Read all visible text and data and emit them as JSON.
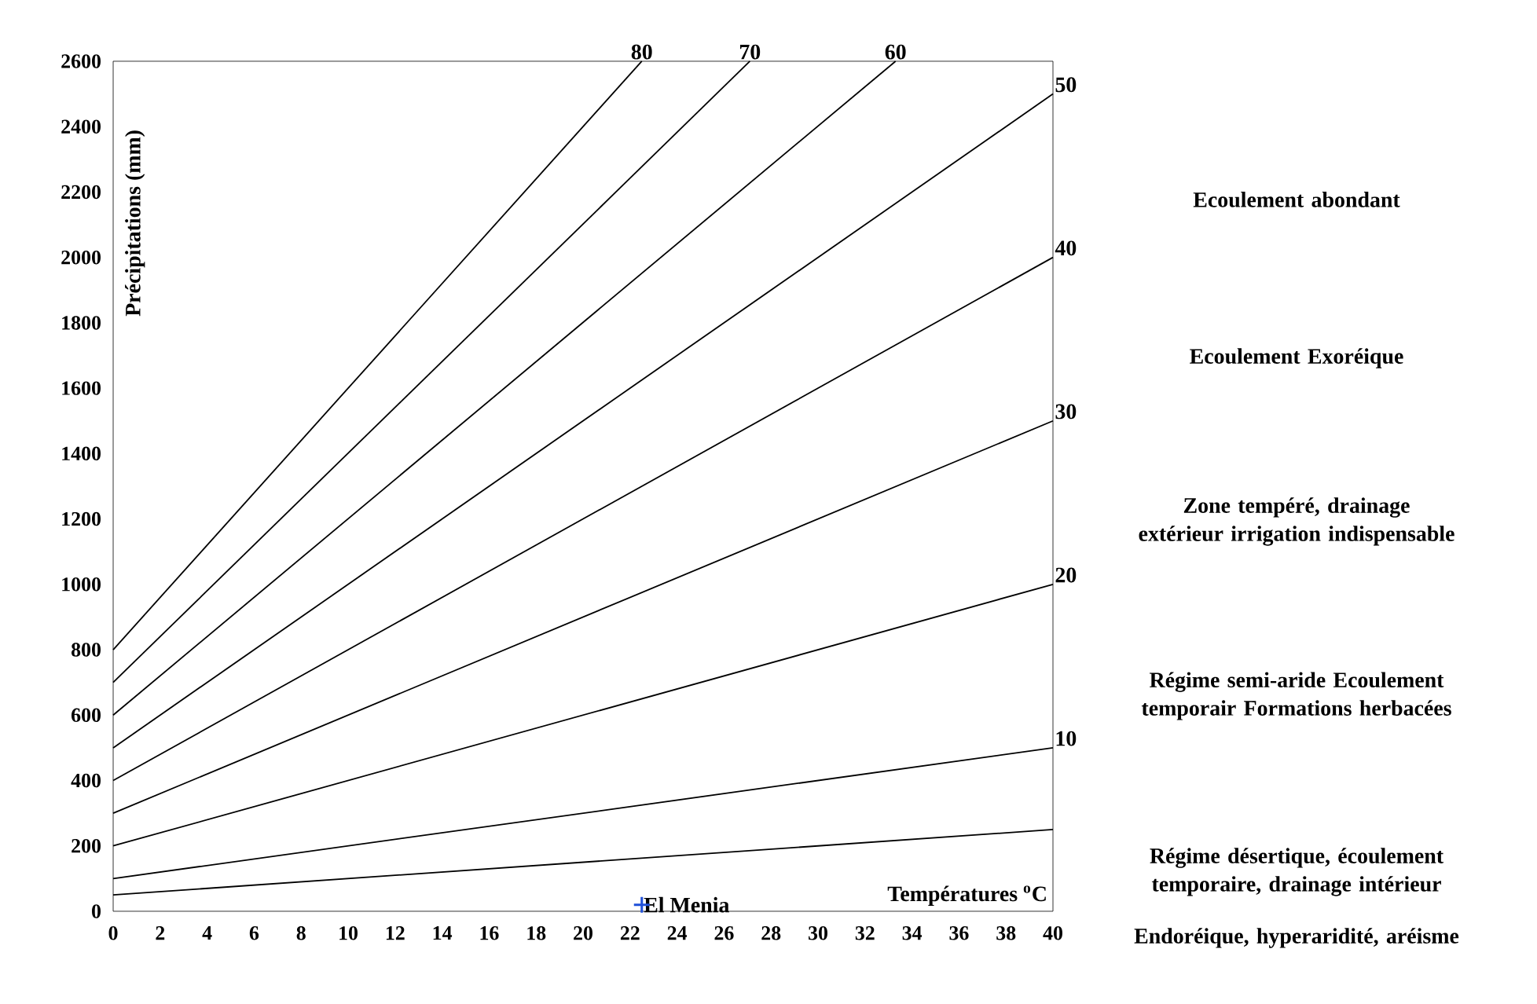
{
  "chart_data": {
    "type": "line",
    "xlabel": "Températures $^{o}$C",
    "ylabel": "Précipitations (mm)",
    "xlim": [
      0,
      40
    ],
    "xticks": [
      0,
      2,
      4,
      6,
      8,
      10,
      12,
      14,
      16,
      18,
      20,
      22,
      24,
      26,
      28,
      30,
      32,
      34,
      36,
      38,
      40
    ],
    "ylim": [
      0,
      2600
    ],
    "yticks": [
      0,
      200,
      400,
      600,
      800,
      1000,
      1200,
      1400,
      1600,
      1800,
      2000,
      2200,
      2400,
      2600
    ],
    "grid": false,
    "marker": "none",
    "series": [
      {
        "color": "#000000",
        "x": [
          0,
          40
        ],
        "values": [
          50,
          250
        ]
      },
      {
        "name": "10",
        "color": "#000000",
        "x": [
          0,
          40
        ],
        "values": [
          100,
          500
        ]
      },
      {
        "name": "20",
        "color": "#000000",
        "x": [
          0,
          40
        ],
        "values": [
          200,
          1000
        ]
      },
      {
        "name": "30",
        "color": "#000000",
        "x": [
          0,
          40
        ],
        "values": [
          300,
          1500
        ]
      },
      {
        "name": "40",
        "color": "#000000",
        "x": [
          0,
          40
        ],
        "values": [
          400,
          2000
        ]
      },
      {
        "name": "50",
        "color": "#000000",
        "x": [
          0,
          40
        ],
        "values": [
          500,
          2500
        ]
      },
      {
        "name": "60",
        "color": "#000000",
        "x": [
          0,
          33.3
        ],
        "values": [
          600,
          2600
        ]
      },
      {
        "name": "70",
        "color": "#000000",
        "x": [
          0,
          27.1
        ],
        "values": [
          700,
          2600
        ]
      },
      {
        "name": "80",
        "color": "#000000",
        "x": [
          0,
          22.5
        ],
        "values": [
          800,
          2600
        ]
      },
      {
        "name": "El Menia",
        "type": "scatter",
        "marker": "cross",
        "color": "#1f4fd8",
        "x": [
          22.5
        ],
        "values": [
          20
        ]
      }
    ],
    "annotations": [
      "Ecoulement abondant",
      "Ecoulement Exoréique",
      "Zone tempéré, drainage extérieur irrigation indispensable",
      "Régime semi-aride Ecoulement temporair Formations herbacées",
      "Régime désertique, écoulement temporaire, drainage intérieur",
      "Endoréique, hyperaridité, aréisme"
    ]
  }
}
